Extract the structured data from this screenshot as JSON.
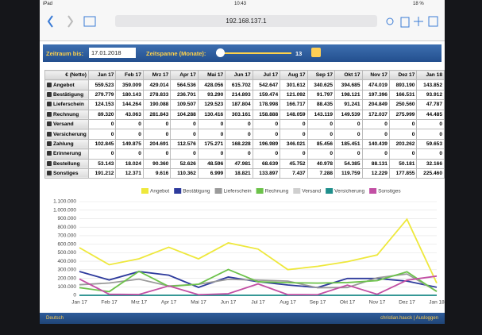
{
  "status_bar": {
    "device": "iPad",
    "time": "10:43",
    "battery": "18 %"
  },
  "browser": {
    "url": "192.168.137.1"
  },
  "toolbar": {
    "date_label": "Zeitraum bis:",
    "date_value": "17.01.2018",
    "span_label": "Zeitspanne (Monate):",
    "span_value": 13
  },
  "table": {
    "header": [
      "€ (Netto)",
      "Jan 17",
      "Feb 17",
      "Mrz 17",
      "Apr 17",
      "Mai 17",
      "Jun 17",
      "Jul 17",
      "Aug 17",
      "Sep 17",
      "Okt 17",
      "Nov 17",
      "Dez 17",
      "Jan 18"
    ],
    "rows": [
      [
        "Angebot",
        "559.523",
        "359.009",
        "429.014",
        "564.536",
        "428.056",
        "615.702",
        "542.647",
        "301.612",
        "340.625",
        "394.685",
        "474.019",
        "893.190",
        "143.852"
      ],
      [
        "Bestätigung",
        "279.779",
        "180.143",
        "278.833",
        "236.701",
        "93.290",
        "214.893",
        "159.474",
        "121.092",
        "91.797",
        "198.121",
        "197.396",
        "166.531",
        "93.912"
      ],
      [
        "Lieferschein",
        "124.153",
        "144.264",
        "190.088",
        "109.507",
        "129.523",
        "187.804",
        "178.998",
        "166.717",
        "88.435",
        "91.241",
        "204.849",
        "250.560",
        "47.787"
      ],
      [
        "Rechnung",
        "89.320",
        "43.063",
        "281.843",
        "104.288",
        "130.416",
        "303.161",
        "158.888",
        "148.059",
        "143.119",
        "149.539",
        "172.037",
        "275.999",
        "44.485"
      ],
      [
        "Versand",
        "0",
        "0",
        "0",
        "0",
        "0",
        "0",
        "0",
        "0",
        "0",
        "0",
        "0",
        "0",
        "0"
      ],
      [
        "Versicherung",
        "0",
        "0",
        "0",
        "0",
        "0",
        "0",
        "0",
        "0",
        "0",
        "0",
        "0",
        "0",
        "0"
      ],
      [
        "Zahlung",
        "102.845",
        "149.875",
        "204.691",
        "112.576",
        "175.271",
        "168.228",
        "196.989",
        "346.021",
        "85.456",
        "185.451",
        "140.439",
        "203.262",
        "59.653"
      ],
      [
        "Erinnerung",
        "0",
        "0",
        "0",
        "0",
        "0",
        "0",
        "0",
        "0",
        "0",
        "0",
        "0",
        "0",
        "0"
      ],
      [
        "Bestellung",
        "53.143",
        "18.024",
        "90.360",
        "52.626",
        "48.596",
        "47.981",
        "68.639",
        "45.752",
        "40.978",
        "54.385",
        "88.131",
        "50.181",
        "32.166"
      ],
      [
        "Sonstiges",
        "191.212",
        "12.371",
        "9.616",
        "110.362",
        "6.999",
        "18.821",
        "133.897",
        "7.437",
        "7.288",
        "119.759",
        "12.229",
        "177.855",
        "225.460"
      ]
    ]
  },
  "chart_data": {
    "type": "line",
    "categories": [
      "Jan 17",
      "Feb 17",
      "Mrz 17",
      "Apr 17",
      "Mai 17",
      "Jun 17",
      "Jul 17",
      "Aug 17",
      "Sep 17",
      "Okt 17",
      "Nov 17",
      "Dez 17",
      "Jan 18"
    ],
    "series": [
      {
        "name": "Angebot",
        "color": "#eee83c",
        "values": [
          559523,
          359009,
          429014,
          564536,
          428056,
          615702,
          542647,
          301612,
          340625,
          394685,
          474019,
          893190,
          143852
        ]
      },
      {
        "name": "Bestätigung",
        "color": "#2d3a9c",
        "values": [
          279779,
          180143,
          278833,
          236701,
          93290,
          214893,
          159474,
          121092,
          91797,
          198121,
          197396,
          166531,
          93912
        ]
      },
      {
        "name": "Lieferschein",
        "color": "#9a9a9a",
        "values": [
          124153,
          144264,
          190088,
          109507,
          129523,
          187804,
          178998,
          166717,
          88435,
          91241,
          204849,
          250560,
          47787
        ]
      },
      {
        "name": "Rechnung",
        "color": "#6cc24a",
        "values": [
          89320,
          43063,
          281843,
          104288,
          130416,
          303161,
          158888,
          148059,
          143119,
          149539,
          172037,
          275999,
          44485
        ]
      },
      {
        "name": "Versand",
        "color": "#cfcfcf",
        "values": [
          0,
          0,
          0,
          0,
          0,
          0,
          0,
          0,
          0,
          0,
          0,
          0,
          0
        ]
      },
      {
        "name": "Versicherung",
        "color": "#1f8f8c",
        "values": [
          0,
          0,
          0,
          0,
          0,
          0,
          0,
          0,
          0,
          0,
          0,
          0,
          0
        ]
      },
      {
        "name": "Sonstiges",
        "color": "#c24fa4",
        "values": [
          191212,
          12371,
          9616,
          110362,
          6999,
          18821,
          133897,
          7437,
          7288,
          119759,
          12229,
          177855,
          225460
        ]
      }
    ],
    "ylim": [
      0,
      1100000
    ],
    "yticks": [
      0,
      {
        "value": 100000,
        "label": "100.000"
      },
      {
        "value": 200000,
        "label": "200.000"
      },
      {
        "value": 300000,
        "label": "300.000"
      },
      {
        "value": 400000,
        "label": "400.000"
      },
      {
        "value": 500000,
        "label": "500.000"
      },
      {
        "value": 600000,
        "label": "600.000"
      },
      {
        "value": 700000,
        "label": "700.000"
      },
      {
        "value": 800000,
        "label": "800.000"
      },
      {
        "value": 900000,
        "label": "900.000"
      },
      {
        "value": 1000000,
        "label": "1.000.000"
      },
      {
        "value": 1100000,
        "label": "1.100.000"
      }
    ],
    "grid": true
  },
  "footer": {
    "language": "Deutsch",
    "user": "christian.hauck | Ausloggen"
  }
}
